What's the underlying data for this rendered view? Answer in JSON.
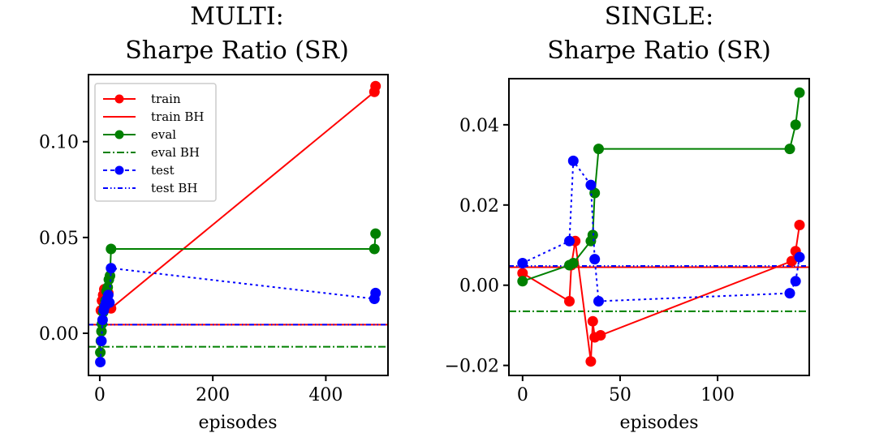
{
  "chart_data": [
    {
      "type": "line",
      "title": "MULTI:",
      "subtitle": "Sharpe Ratio (SR)",
      "xlabel": "episodes",
      "ylabel": "",
      "xlim": [
        -20,
        510
      ],
      "ylim": [
        -0.022,
        0.135
      ],
      "xticks": [
        0,
        200,
        400
      ],
      "xtick_labels": [
        "0",
        "200",
        "400"
      ],
      "yticks": [
        0.0,
        0.05,
        0.1
      ],
      "ytick_labels": [
        "0.00",
        "0.05",
        "0.10"
      ],
      "legend_position": "top-left",
      "series": [
        {
          "name": "train",
          "style": "solid-marker",
          "color": "#ff0000",
          "x": [
            2,
            4,
            6,
            8,
            10,
            12,
            15,
            20,
            486,
            488
          ],
          "y": [
            0.012,
            0.017,
            0.02,
            0.023,
            0.022,
            0.019,
            0.021,
            0.013,
            0.126,
            0.129
          ]
        },
        {
          "name": "train BH",
          "style": "solid",
          "color": "#ff0000",
          "x": [
            -20,
            510
          ],
          "y": [
            0.0045,
            0.0045
          ]
        },
        {
          "name": "eval",
          "style": "solid-marker",
          "color": "#008000",
          "x": [
            1,
            2,
            3,
            4,
            6,
            8,
            10,
            12,
            14,
            16,
            18,
            20,
            486,
            488
          ],
          "y": [
            -0.01,
            -0.004,
            0.001,
            0.005,
            0.011,
            0.014,
            0.017,
            0.022,
            0.024,
            0.028,
            0.03,
            0.044,
            0.044,
            0.052
          ]
        },
        {
          "name": "eval BH",
          "style": "dashdot",
          "color": "#008000",
          "x": [
            -20,
            510
          ],
          "y": [
            -0.007,
            -0.007
          ]
        },
        {
          "name": "test",
          "style": "dotted-marker",
          "color": "#0000ff",
          "x": [
            1,
            3,
            5,
            7,
            9,
            11,
            13,
            15,
            17,
            20,
            486,
            488
          ],
          "y": [
            -0.015,
            -0.004,
            0.007,
            0.012,
            0.014,
            0.016,
            0.018,
            0.02,
            0.016,
            0.034,
            0.018,
            0.021
          ]
        },
        {
          "name": "test BH",
          "style": "dashdotdot",
          "color": "#0000ff",
          "x": [
            -20,
            510
          ],
          "y": [
            0.0045,
            0.0045
          ]
        }
      ],
      "legend": [
        "train",
        "train BH",
        "eval",
        "eval BH",
        "test",
        "test BH"
      ]
    },
    {
      "type": "line",
      "title": "SINGLE:",
      "subtitle": "Sharpe Ratio (SR)",
      "xlabel": "episodes",
      "ylabel": "",
      "xlim": [
        -7,
        147
      ],
      "ylim": [
        -0.0225,
        0.0515
      ],
      "xticks": [
        0,
        50,
        100
      ],
      "xtick_labels": [
        "0",
        "50",
        "100"
      ],
      "yticks": [
        -0.02,
        0.0,
        0.02,
        0.04
      ],
      "ytick_labels": [
        "−0.02",
        "0.00",
        "0.02",
        "0.04"
      ],
      "series": [
        {
          "name": "train",
          "style": "solid-marker",
          "color": "#ff0000",
          "x": [
            0,
            24,
            25,
            27,
            35,
            36,
            37,
            40,
            138,
            140,
            142
          ],
          "y": [
            0.003,
            -0.004,
            0.005,
            0.011,
            -0.019,
            -0.009,
            -0.013,
            -0.0125,
            0.006,
            0.0085,
            0.015
          ]
        },
        {
          "name": "train BH",
          "style": "solid",
          "color": "#ff0000",
          "x": [
            -7,
            147
          ],
          "y": [
            0.0045,
            0.0045
          ]
        },
        {
          "name": "eval",
          "style": "solid-marker",
          "color": "#008000",
          "x": [
            0,
            24,
            26,
            35,
            36,
            37,
            39,
            137,
            140,
            142
          ],
          "y": [
            0.001,
            0.005,
            0.0055,
            0.011,
            0.0125,
            0.023,
            0.034,
            0.034,
            0.04,
            0.048
          ]
        },
        {
          "name": "eval BH",
          "style": "dashdot",
          "color": "#008000",
          "x": [
            -7,
            147
          ],
          "y": [
            -0.0065,
            -0.0065
          ]
        },
        {
          "name": "test",
          "style": "dotted-marker",
          "color": "#0000ff",
          "x": [
            0,
            24,
            26,
            35,
            37,
            39,
            137,
            140,
            142
          ],
          "y": [
            0.0055,
            0.011,
            0.031,
            0.025,
            0.0065,
            -0.004,
            -0.002,
            0.001,
            0.007
          ]
        },
        {
          "name": "test BH",
          "style": "dashdotdot",
          "color": "#0000ff",
          "x": [
            -7,
            147
          ],
          "y": [
            0.0048,
            0.0048
          ]
        }
      ]
    }
  ]
}
